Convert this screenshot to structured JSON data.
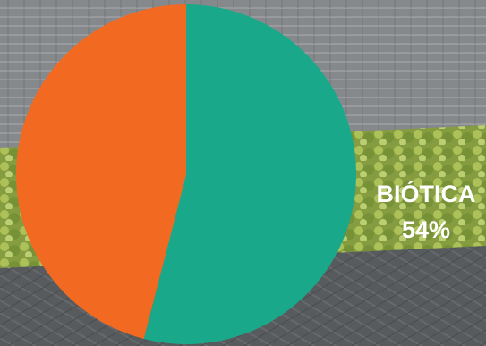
{
  "chart_data": {
    "type": "pie",
    "slices": [
      {
        "label": "BIÓTICA",
        "value": 54,
        "value_label": "54%",
        "color": "#19a98a"
      },
      {
        "label": "",
        "value": 46,
        "value_label": "",
        "color": "#f26a21"
      }
    ],
    "label_color": "#ffffff"
  },
  "background": {
    "greenhouse_roof": "#8c8f93",
    "plants": "#9fb64a",
    "beds": "#5b5e61"
  }
}
